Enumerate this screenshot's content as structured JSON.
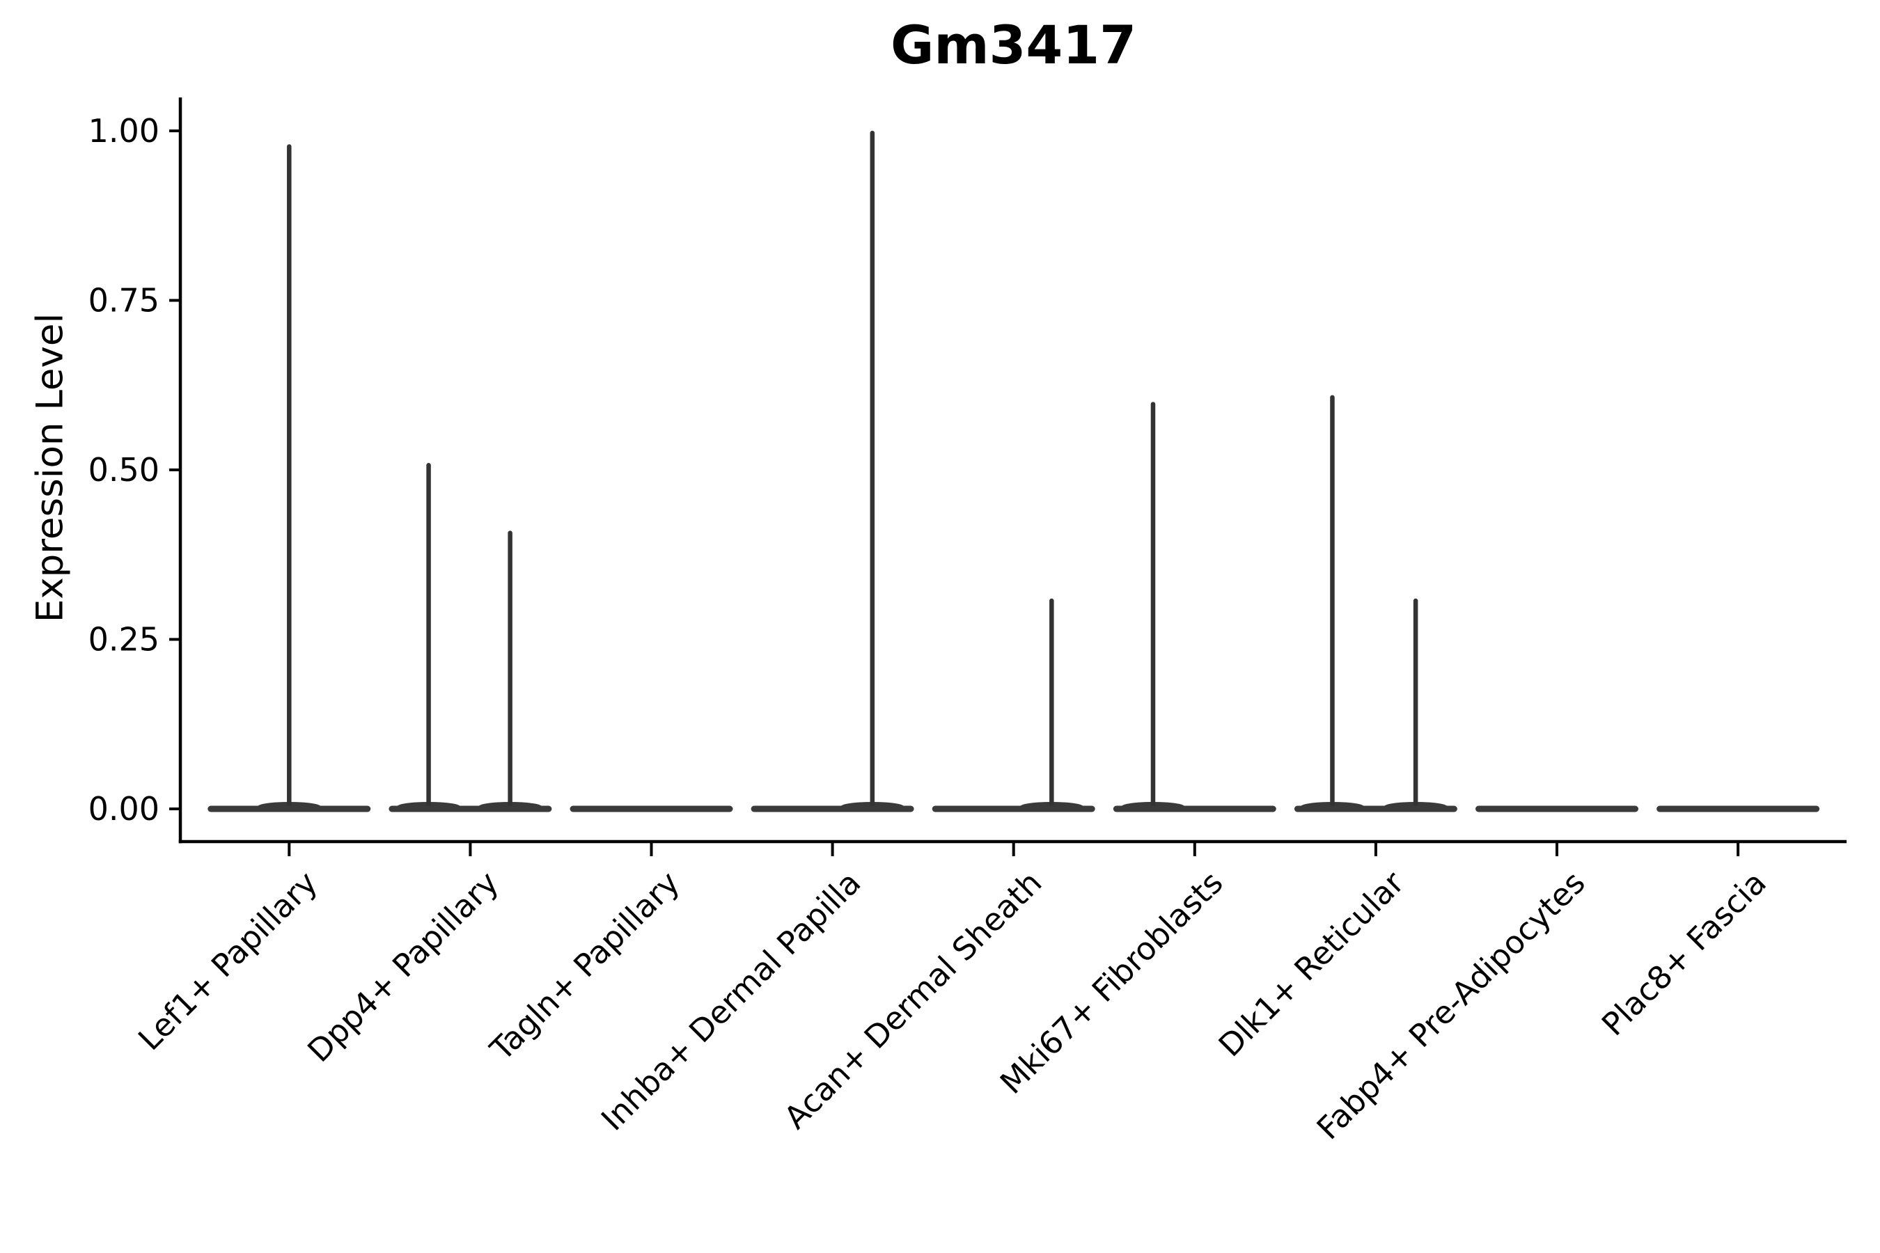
{
  "figure": {
    "background": "#ffffff"
  },
  "chart_data": {
    "type": "violin",
    "title": "Gm3417",
    "xlabel": "",
    "ylabel": "Expression Level",
    "categories": [
      "Lef1+ Papillary",
      "Dpp4+ Papillary",
      "Tagln+ Papillary",
      "Inhba+ Dermal Papilla",
      "Acan+ Dermal Sheath",
      "Mki67+ Fibroblasts",
      "Dlk1+ Reticular",
      "Fabp4+ Pre-Adipocytes",
      "Plac8+ Fascia"
    ],
    "y_ticks": {
      "labels": [
        "1.00",
        "0.75",
        "0.50",
        "0.25",
        "0.00"
      ],
      "values": [
        1.0,
        0.75,
        0.5,
        0.25,
        0.0
      ]
    },
    "ylim": [
      0,
      1
    ],
    "grid": false,
    "legend": "none",
    "x_tick_label_rotation_deg": 45,
    "description": "Violin plot of Gm3417 expression; most cells have zero expression so each violin collapses to a flat bar at 0 with thin spikes reaching the maximum expressing cells.",
    "style": {
      "violin_fill": "#3a3a3a",
      "spike_stroke": "#333333",
      "axis_color": "#000000",
      "violin_halfwidth_frac": 0.45,
      "axis_expansion_frac": 0.05
    },
    "violins": [
      {
        "category": "Lef1+ Papillary",
        "baseline": 0.0,
        "spikes": [
          {
            "offset_frac": 0.0,
            "max_value": 0.98
          }
        ]
      },
      {
        "category": "Dpp4+ Papillary",
        "baseline": 0.0,
        "spikes": [
          {
            "offset_frac": -0.23,
            "max_value": 0.51
          },
          {
            "offset_frac": 0.22,
            "max_value": 0.41
          }
        ]
      },
      {
        "category": "Tagln+ Papillary",
        "baseline": 0.0,
        "spikes": []
      },
      {
        "category": "Inhba+ Dermal Papilla",
        "baseline": 0.0,
        "spikes": [
          {
            "offset_frac": 0.22,
            "max_value": 1.0
          }
        ]
      },
      {
        "category": "Acan+ Dermal Sheath",
        "baseline": 0.0,
        "spikes": [
          {
            "offset_frac": 0.21,
            "max_value": 0.31
          }
        ]
      },
      {
        "category": "Mki67+ Fibroblasts",
        "baseline": 0.0,
        "spikes": [
          {
            "offset_frac": -0.23,
            "max_value": 0.6
          }
        ]
      },
      {
        "category": "Dlk1+ Reticular",
        "baseline": 0.0,
        "spikes": [
          {
            "offset_frac": -0.24,
            "max_value": 0.61
          },
          {
            "offset_frac": 0.22,
            "max_value": 0.31
          }
        ]
      },
      {
        "category": "Fabp4+ Pre-Adipocytes",
        "baseline": 0.0,
        "spikes": []
      },
      {
        "category": "Plac8+ Fascia",
        "baseline": 0.0,
        "spikes": []
      }
    ]
  }
}
